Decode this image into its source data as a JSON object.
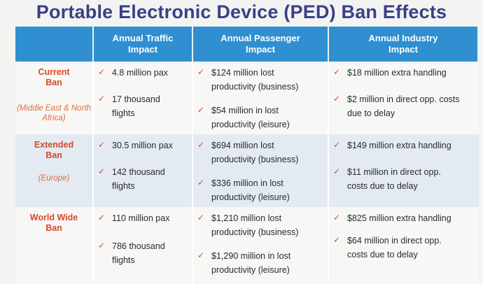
{
  "title": "Portable Electronic Device (PED) Ban Effects",
  "headers": [
    "",
    "Annual Traffic Impact",
    "Annual Passenger Impact",
    "Annual Industry Impact"
  ],
  "rows": [
    {
      "label": "Current Ban",
      "sub": "(Middle East & North Africa)",
      "traffic": [
        "4.8 million pax",
        "17 thousand flights"
      ],
      "passenger": [
        "$124 million lost productivity (business)",
        "$54 million in lost productivity (leisure)"
      ],
      "industry": [
        "$18 million extra handling",
        "$2 million in direct opp. costs due to delay"
      ]
    },
    {
      "label": "Extended Ban",
      "sub": "(Europe)",
      "traffic": [
        "30.5 million pax",
        "142 thousand flights"
      ],
      "passenger": [
        "$694 million lost productivity (business)",
        "$336 million in lost productivity (leisure)"
      ],
      "industry": [
        "$149 million extra handling",
        "$11 million in direct opp. costs due to delay"
      ]
    },
    {
      "label": "World Wide Ban",
      "sub": "",
      "traffic": [
        "110 million pax",
        "786 thousand flights"
      ],
      "passenger": [
        "$1,210 million lost productivity (business)",
        "$1,290 million in lost productivity (leisure)"
      ],
      "industry": [
        "$825 million extra handling",
        "$64 million in direct opp. costs due to delay"
      ]
    }
  ],
  "check_glyph": "✓",
  "colors": {
    "header": "#2f8fd0",
    "title": "#3a3f8a",
    "row_label": "#d9462a",
    "check": "#e0472a"
  }
}
